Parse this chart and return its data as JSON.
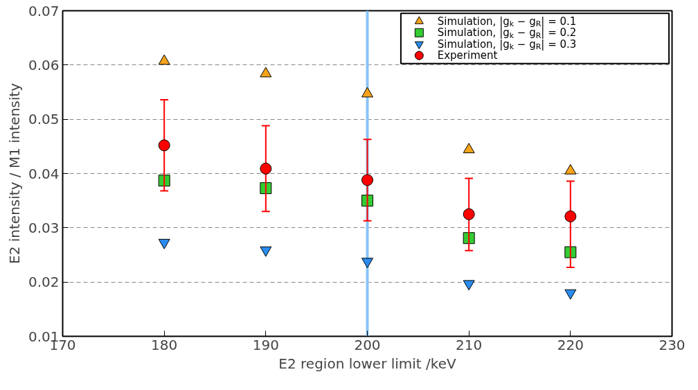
{
  "chart_data": {
    "type": "scatter",
    "xlabel": "E2 region lower limit /keV",
    "ylabel": "E2 intensity / M1 intensity",
    "x": [
      180,
      190,
      200,
      210,
      220
    ],
    "series": [
      {
        "name": "Simulation, |g$_{k}$ − g$_{R}$| = 0.1",
        "color": "#f5a31a",
        "marker": "triangle",
        "values": [
          0.0607,
          0.0584,
          0.0547,
          0.0444,
          0.0405
        ]
      },
      {
        "name": "Simulation, |g$_{k}$ − g$_{R}$| = 0.2",
        "color": "#33cc33",
        "marker": "square",
        "values": [
          0.0387,
          0.0373,
          0.035,
          0.0281,
          0.0255
        ]
      },
      {
        "name": "Simulation, |g$_{k}$ − g$_{R}$| = 0.3",
        "color": "#2b8cf0",
        "marker": "triangle",
        "values": [
          0.0273,
          0.0259,
          0.0238,
          0.0197,
          0.018
        ]
      },
      {
        "name": "Experiment",
        "color": "#ff0000",
        "marker": "circle",
        "values": [
          0.0452,
          0.0409,
          0.0388,
          0.0325,
          0.0321
        ],
        "errors": [
          [
            0.0368,
            0.0536
          ],
          [
            0.033,
            0.0488
          ],
          [
            0.0313,
            0.0463
          ],
          [
            0.0258,
            0.0391
          ],
          [
            0.0227,
            0.0386
          ]
        ]
      }
    ],
    "xlim": [
      170,
      230
    ],
    "xticks": [
      170,
      180,
      190,
      200,
      210,
      220,
      230
    ],
    "ylim": [
      0.01,
      0.07
    ],
    "yticks": [
      0.01,
      0.02,
      0.03,
      0.04,
      0.05,
      0.06,
      0.07
    ],
    "ref_lines": [
      {
        "axis": "x",
        "value": 200,
        "color": "#88c4f8"
      }
    ],
    "grid": "y",
    "legend": "top right"
  }
}
